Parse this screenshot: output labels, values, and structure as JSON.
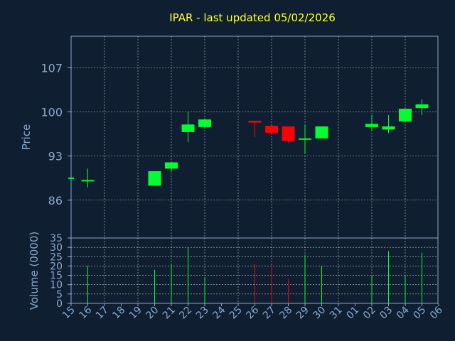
{
  "chart_data": {
    "type": "candlestick",
    "title": "IPAR - last updated 05/02/2026",
    "xlabel": "Day",
    "ylabel_price": "Price",
    "ylabel_volume": "Volume (0000)",
    "price_ticks": [
      86,
      93,
      100,
      107
    ],
    "price_ylim": [
      80,
      112
    ],
    "volume_ticks": [
      0,
      5,
      10,
      15,
      20,
      25,
      30,
      35
    ],
    "volume_ylim": [
      0,
      35
    ],
    "x_tick_labels": [
      "15",
      "16",
      "17",
      "18",
      "19",
      "20",
      "21",
      "22",
      "23",
      "24",
      "25",
      "26",
      "27",
      "28",
      "29",
      "30",
      "31",
      "01",
      "02",
      "03",
      "04",
      "05",
      "06"
    ],
    "grid": true,
    "colors": {
      "up": "#00ff33",
      "down": "#ff0000",
      "grid": "#ffffff",
      "background": "#0f1e30",
      "title": "#ffff33",
      "axis_text": "#8aa8cc"
    },
    "candles": [
      {
        "day": "15",
        "open": 89.6,
        "high": 89.6,
        "low": 89.6,
        "close": 89.6,
        "volume": 0
      },
      {
        "day": "16",
        "open": 89.2,
        "high": 91.0,
        "low": 88.0,
        "close": 89.2,
        "volume": 20
      },
      {
        "day": "20",
        "open": 88.3,
        "high": 90.6,
        "low": 88.3,
        "close": 90.6,
        "volume": 18
      },
      {
        "day": "21",
        "open": 91.0,
        "high": 92.0,
        "low": 90.5,
        "close": 92.0,
        "volume": 21
      },
      {
        "day": "22",
        "open": 96.8,
        "high": 100.0,
        "low": 95.2,
        "close": 98.0,
        "volume": 30
      },
      {
        "day": "23",
        "open": 97.6,
        "high": 99.0,
        "low": 97.6,
        "close": 98.8,
        "volume": 14
      },
      {
        "day": "26",
        "open": 98.6,
        "high": 98.6,
        "low": 96.0,
        "close": 98.3,
        "volume": 21
      },
      {
        "day": "27",
        "open": 97.8,
        "high": 97.8,
        "low": 96.7,
        "close": 96.7,
        "volume": 20
      },
      {
        "day": "28",
        "open": 97.7,
        "high": 97.7,
        "low": 95.0,
        "close": 95.4,
        "volume": 13
      },
      {
        "day": "29",
        "open": 95.6,
        "high": 98.0,
        "low": 93.3,
        "close": 95.8,
        "volume": 26
      },
      {
        "day": "30",
        "open": 95.8,
        "high": 97.7,
        "low": 95.8,
        "close": 97.7,
        "volume": 20
      },
      {
        "day": "02",
        "open": 97.6,
        "high": 99.5,
        "low": 97.0,
        "close": 98.1,
        "volume": 15
      },
      {
        "day": "03",
        "open": 97.2,
        "high": 99.5,
        "low": 96.6,
        "close": 97.7,
        "volume": 28
      },
      {
        "day": "04",
        "open": 98.5,
        "high": 100.5,
        "low": 98.5,
        "close": 100.5,
        "volume": 15
      },
      {
        "day": "05",
        "open": 100.6,
        "high": 102.0,
        "low": 99.5,
        "close": 101.2,
        "volume": 27
      }
    ]
  }
}
